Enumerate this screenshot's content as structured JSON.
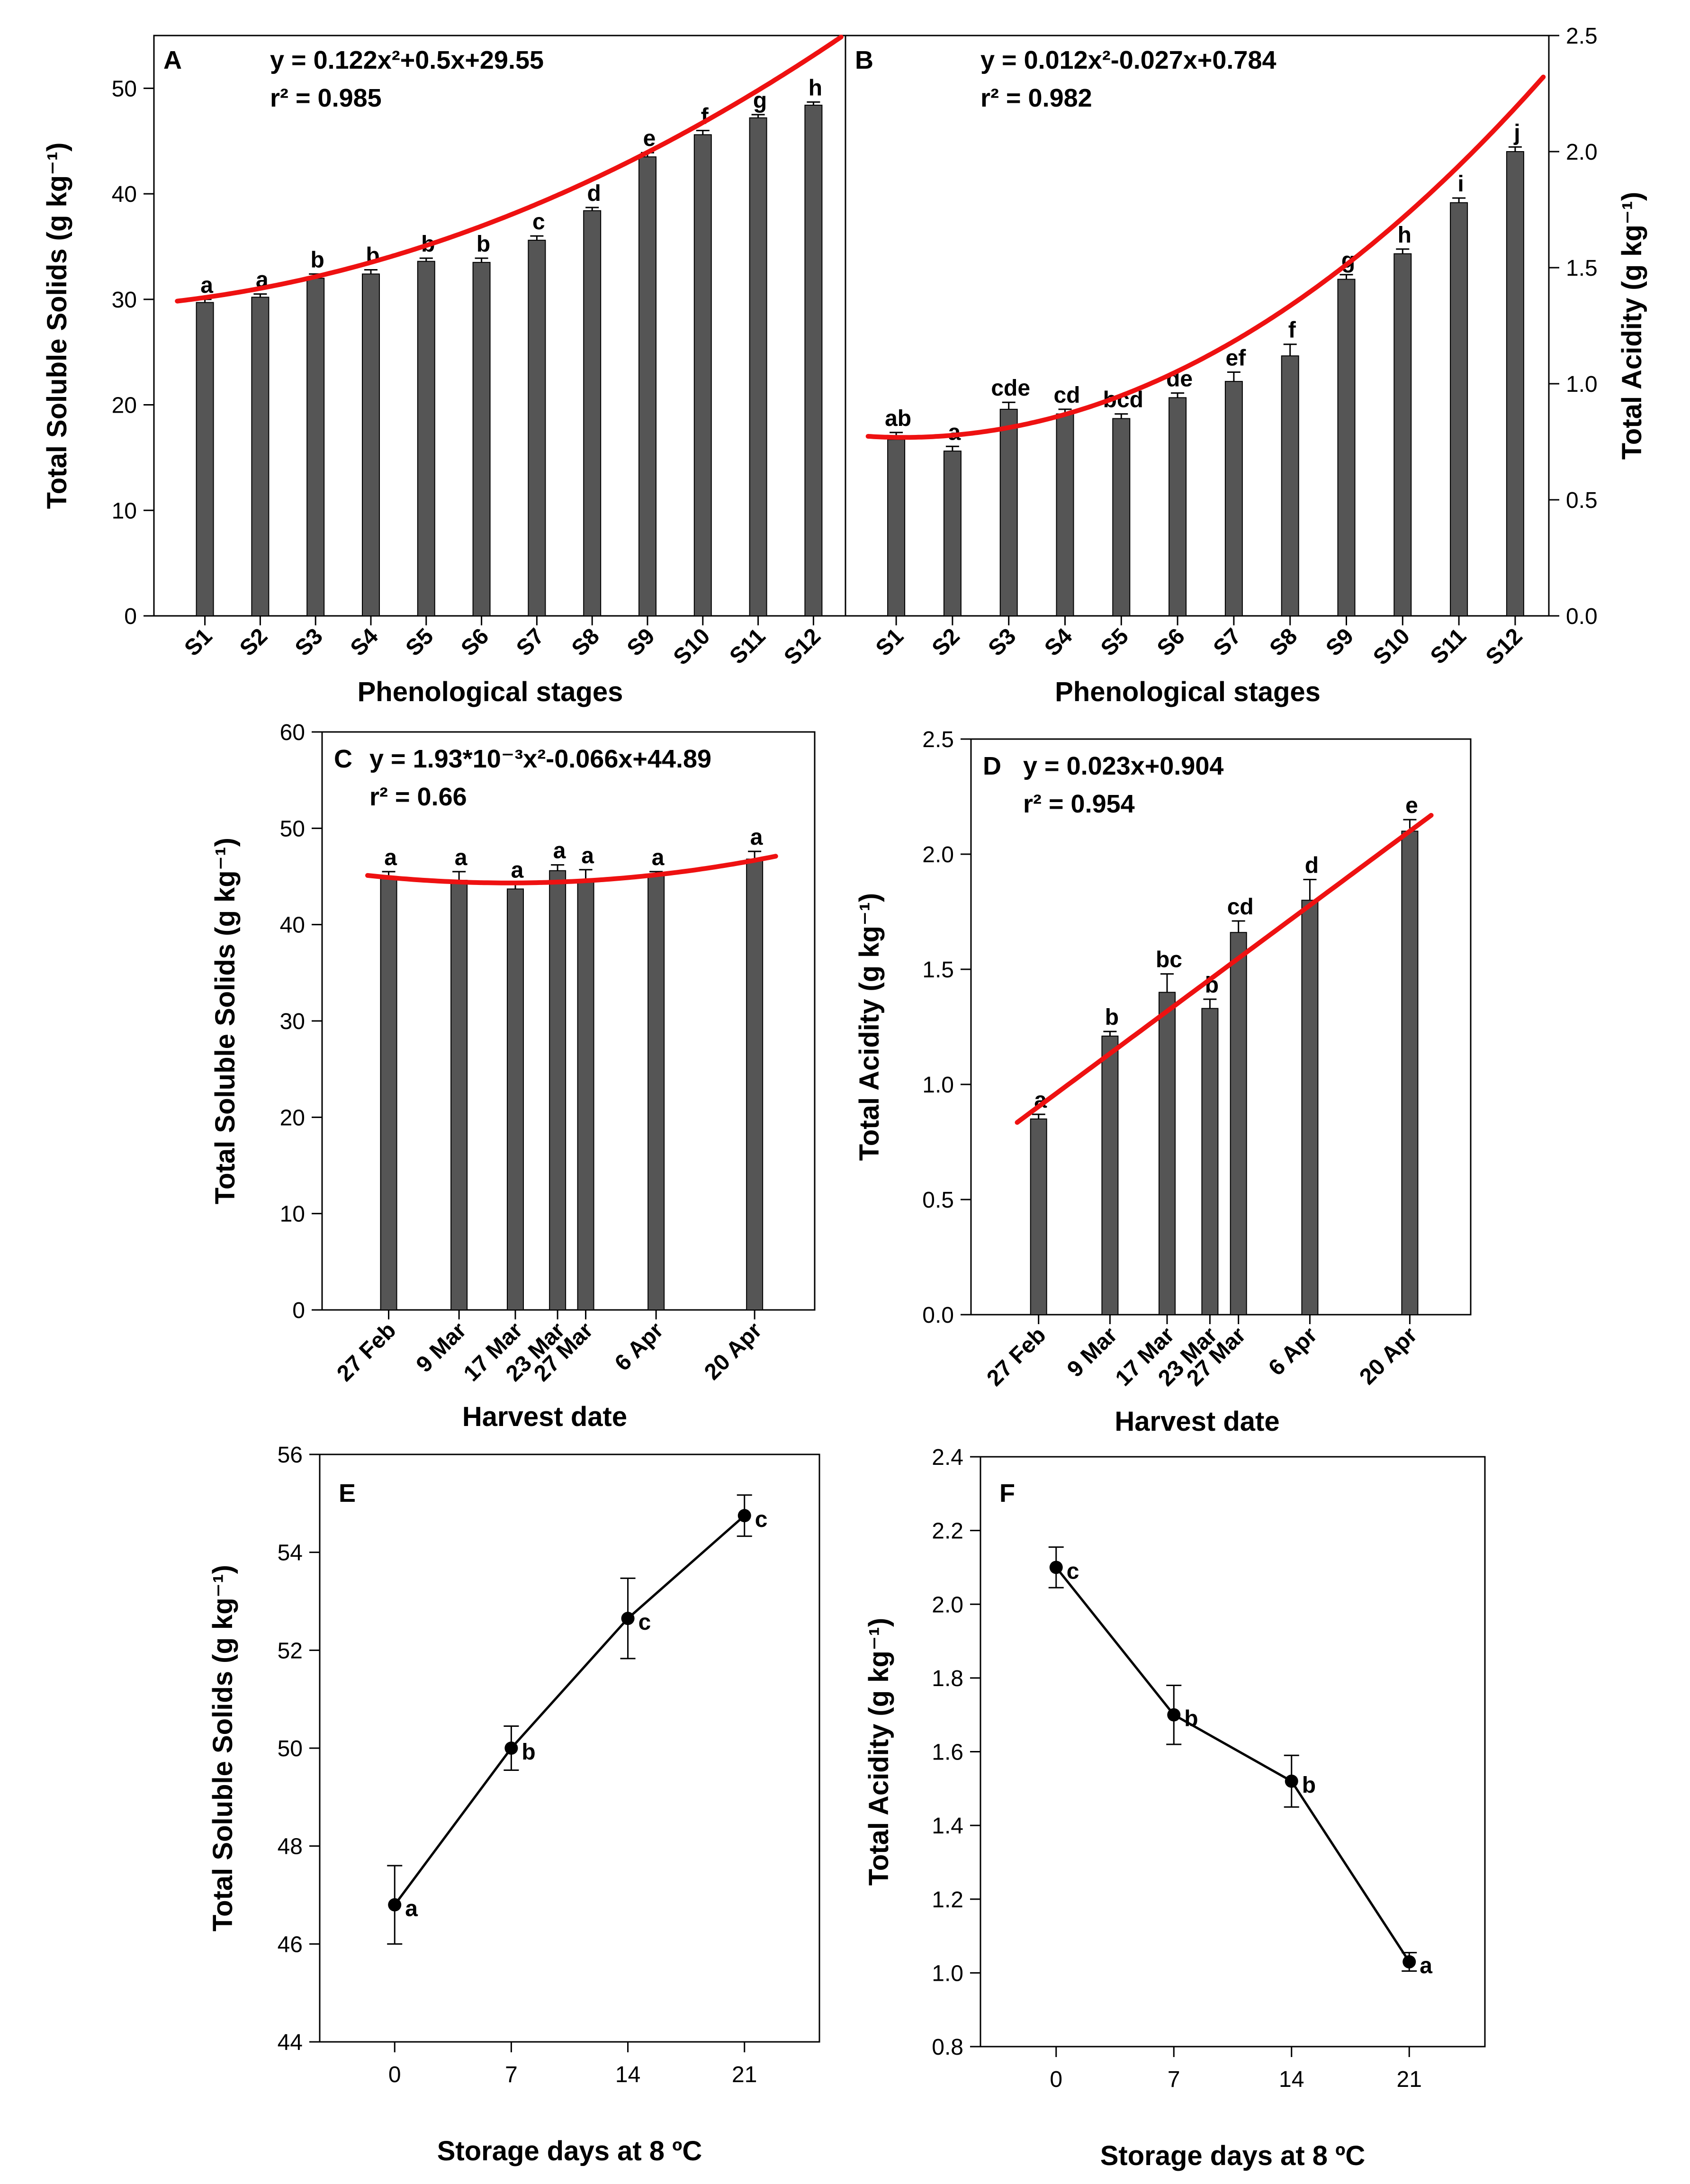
{
  "chart_data": [
    {
      "id": "A",
      "type": "bar",
      "panel_label": "A",
      "categories": [
        "S1",
        "S2",
        "S3",
        "S4",
        "S5",
        "S6",
        "S7",
        "S8",
        "S9",
        "S10",
        "S11",
        "S12"
      ],
      "values": [
        29.7,
        30.2,
        32.0,
        32.4,
        33.6,
        33.5,
        35.6,
        38.4,
        43.5,
        45.6,
        47.2,
        48.4
      ],
      "errors": [
        0.3,
        0.3,
        0.4,
        0.4,
        0.3,
        0.4,
        0.4,
        0.3,
        0.4,
        0.4,
        0.3,
        0.3
      ],
      "letters": [
        "a",
        "a",
        "b",
        "b",
        "b",
        "b",
        "c",
        "d",
        "e",
        "f",
        "g",
        "h"
      ],
      "fit": {
        "type": "poly2",
        "a": 0.122,
        "b": 0.5,
        "c": 29.55
      },
      "equation": "y = 0.122x²+0.5x+29.55",
      "r2": "r² = 0.985",
      "xlabel": "Phenological stages",
      "ylabel": "Total Soluble Solids (g kg⁻¹)",
      "ylim": [
        0,
        55
      ],
      "yticks": [
        0,
        10,
        20,
        30,
        40,
        50
      ]
    },
    {
      "id": "B",
      "type": "bar",
      "panel_label": "B",
      "categories": [
        "S1",
        "S2",
        "S3",
        "S4",
        "S5",
        "S6",
        "S7",
        "S8",
        "S9",
        "S10",
        "S11",
        "S12"
      ],
      "values": [
        0.76,
        0.71,
        0.89,
        0.87,
        0.85,
        0.94,
        1.01,
        1.12,
        1.45,
        1.56,
        1.78,
        2.0
      ],
      "errors": [
        0.03,
        0.02,
        0.03,
        0.02,
        0.02,
        0.02,
        0.04,
        0.05,
        0.02,
        0.02,
        0.02,
        0.02
      ],
      "letters": [
        "ab",
        "a",
        "cde",
        "cd",
        "bcd",
        "de",
        "ef",
        "f",
        "g",
        "h",
        "i",
        "j"
      ],
      "fit": {
        "type": "poly2",
        "a": 0.012,
        "b": -0.027,
        "c": 0.784
      },
      "equation": "y = 0.012x²-0.027x+0.784",
      "r2": "r² = 0.982",
      "xlabel": "Phenological stages",
      "ylabel": "Total Acidity (g kg⁻¹)",
      "ylim": [
        0,
        2.5
      ],
      "yticks": [
        "0.0",
        "0.5",
        "1.0",
        "1.5",
        "2.0",
        "2.5"
      ]
    },
    {
      "id": "C",
      "type": "bar",
      "panel_label": "C",
      "categories": [
        "27 Feb",
        "9 Mar",
        "17 Mar",
        "23 Mar",
        "27 Mar",
        "6 Apr",
        "20 Apr"
      ],
      "days": [
        0,
        10,
        18,
        24,
        28,
        38,
        52
      ],
      "values": [
        45.0,
        44.6,
        43.7,
        45.6,
        44.7,
        45.2,
        46.8
      ],
      "errors": [
        0.5,
        0.9,
        0.5,
        0.6,
        1.0,
        0.3,
        0.8
      ],
      "letters": [
        "a",
        "a",
        "a",
        "a",
        "a",
        "a",
        "a"
      ],
      "fit": {
        "type": "poly2",
        "a": 0.00193,
        "b": -0.066,
        "c": 44.89
      },
      "equation": "y = 1.93*10⁻³x²-0.066x+44.89",
      "r2": "r² = 0.66",
      "xlabel": "Harvest date",
      "ylabel": "Total Soluble Solids (g kg⁻¹)",
      "ylim": [
        0,
        60
      ],
      "yticks": [
        0,
        10,
        20,
        30,
        40,
        50,
        60
      ]
    },
    {
      "id": "D",
      "type": "bar",
      "panel_label": "D",
      "categories": [
        "27 Feb",
        "9 Mar",
        "17 Mar",
        "23 Mar",
        "27 Mar",
        "6 Apr",
        "20 Apr"
      ],
      "days": [
        0,
        10,
        18,
        24,
        28,
        38,
        52
      ],
      "values": [
        0.85,
        1.21,
        1.4,
        1.33,
        1.66,
        1.8,
        2.1
      ],
      "errors": [
        0.02,
        0.02,
        0.08,
        0.04,
        0.05,
        0.09,
        0.05
      ],
      "letters": [
        "a",
        "b",
        "bc",
        "b",
        "cd",
        "d",
        "e"
      ],
      "fit": {
        "type": "poly1",
        "a": 0,
        "b": 0.023,
        "c": 0.904
      },
      "equation": "y = 0.023x+0.904",
      "r2": "r² = 0.954",
      "xlabel": "Harvest date",
      "ylabel": "Total Acidity (g kg⁻¹)",
      "ylim": [
        0,
        2.5
      ],
      "yticks": [
        "0.0",
        "0.5",
        "1.0",
        "1.5",
        "2.0",
        "2.5"
      ]
    },
    {
      "id": "E",
      "type": "line",
      "panel_label": "E",
      "x": [
        0,
        7,
        14,
        21
      ],
      "values": [
        46.8,
        50.0,
        52.65,
        54.75
      ],
      "errors": [
        0.8,
        0.45,
        0.82,
        0.42
      ],
      "letters": [
        "a",
        "b",
        "c",
        "c"
      ],
      "xlabel": "Storage days at 8 ºC",
      "ylabel": "Total Soluble Solids (g kg⁻¹)",
      "xlim": [
        -4.5,
        25.5
      ],
      "xticks": [
        0,
        7,
        14,
        21
      ],
      "ylim": [
        44,
        56
      ],
      "yticks": [
        44,
        46,
        48,
        50,
        52,
        54,
        56
      ]
    },
    {
      "id": "F",
      "type": "line",
      "panel_label": "F",
      "x": [
        0,
        7,
        14,
        21
      ],
      "values": [
        2.1,
        1.7,
        1.52,
        1.03
      ],
      "errors": [
        0.055,
        0.08,
        0.07,
        0.025
      ],
      "letters": [
        "c",
        "b",
        "b",
        "a"
      ],
      "xlabel": "Storage days at 8 ºC",
      "ylabel": "Total Acidity (g kg⁻¹)",
      "xlim": [
        -4.5,
        25.5
      ],
      "xticks": [
        0,
        7,
        14,
        21
      ],
      "ylim": [
        0.8,
        2.4
      ],
      "yticks": [
        "0.8",
        "1.0",
        "1.2",
        "1.4",
        "1.6",
        "1.8",
        "2.0",
        "2.2",
        "2.4"
      ]
    }
  ]
}
